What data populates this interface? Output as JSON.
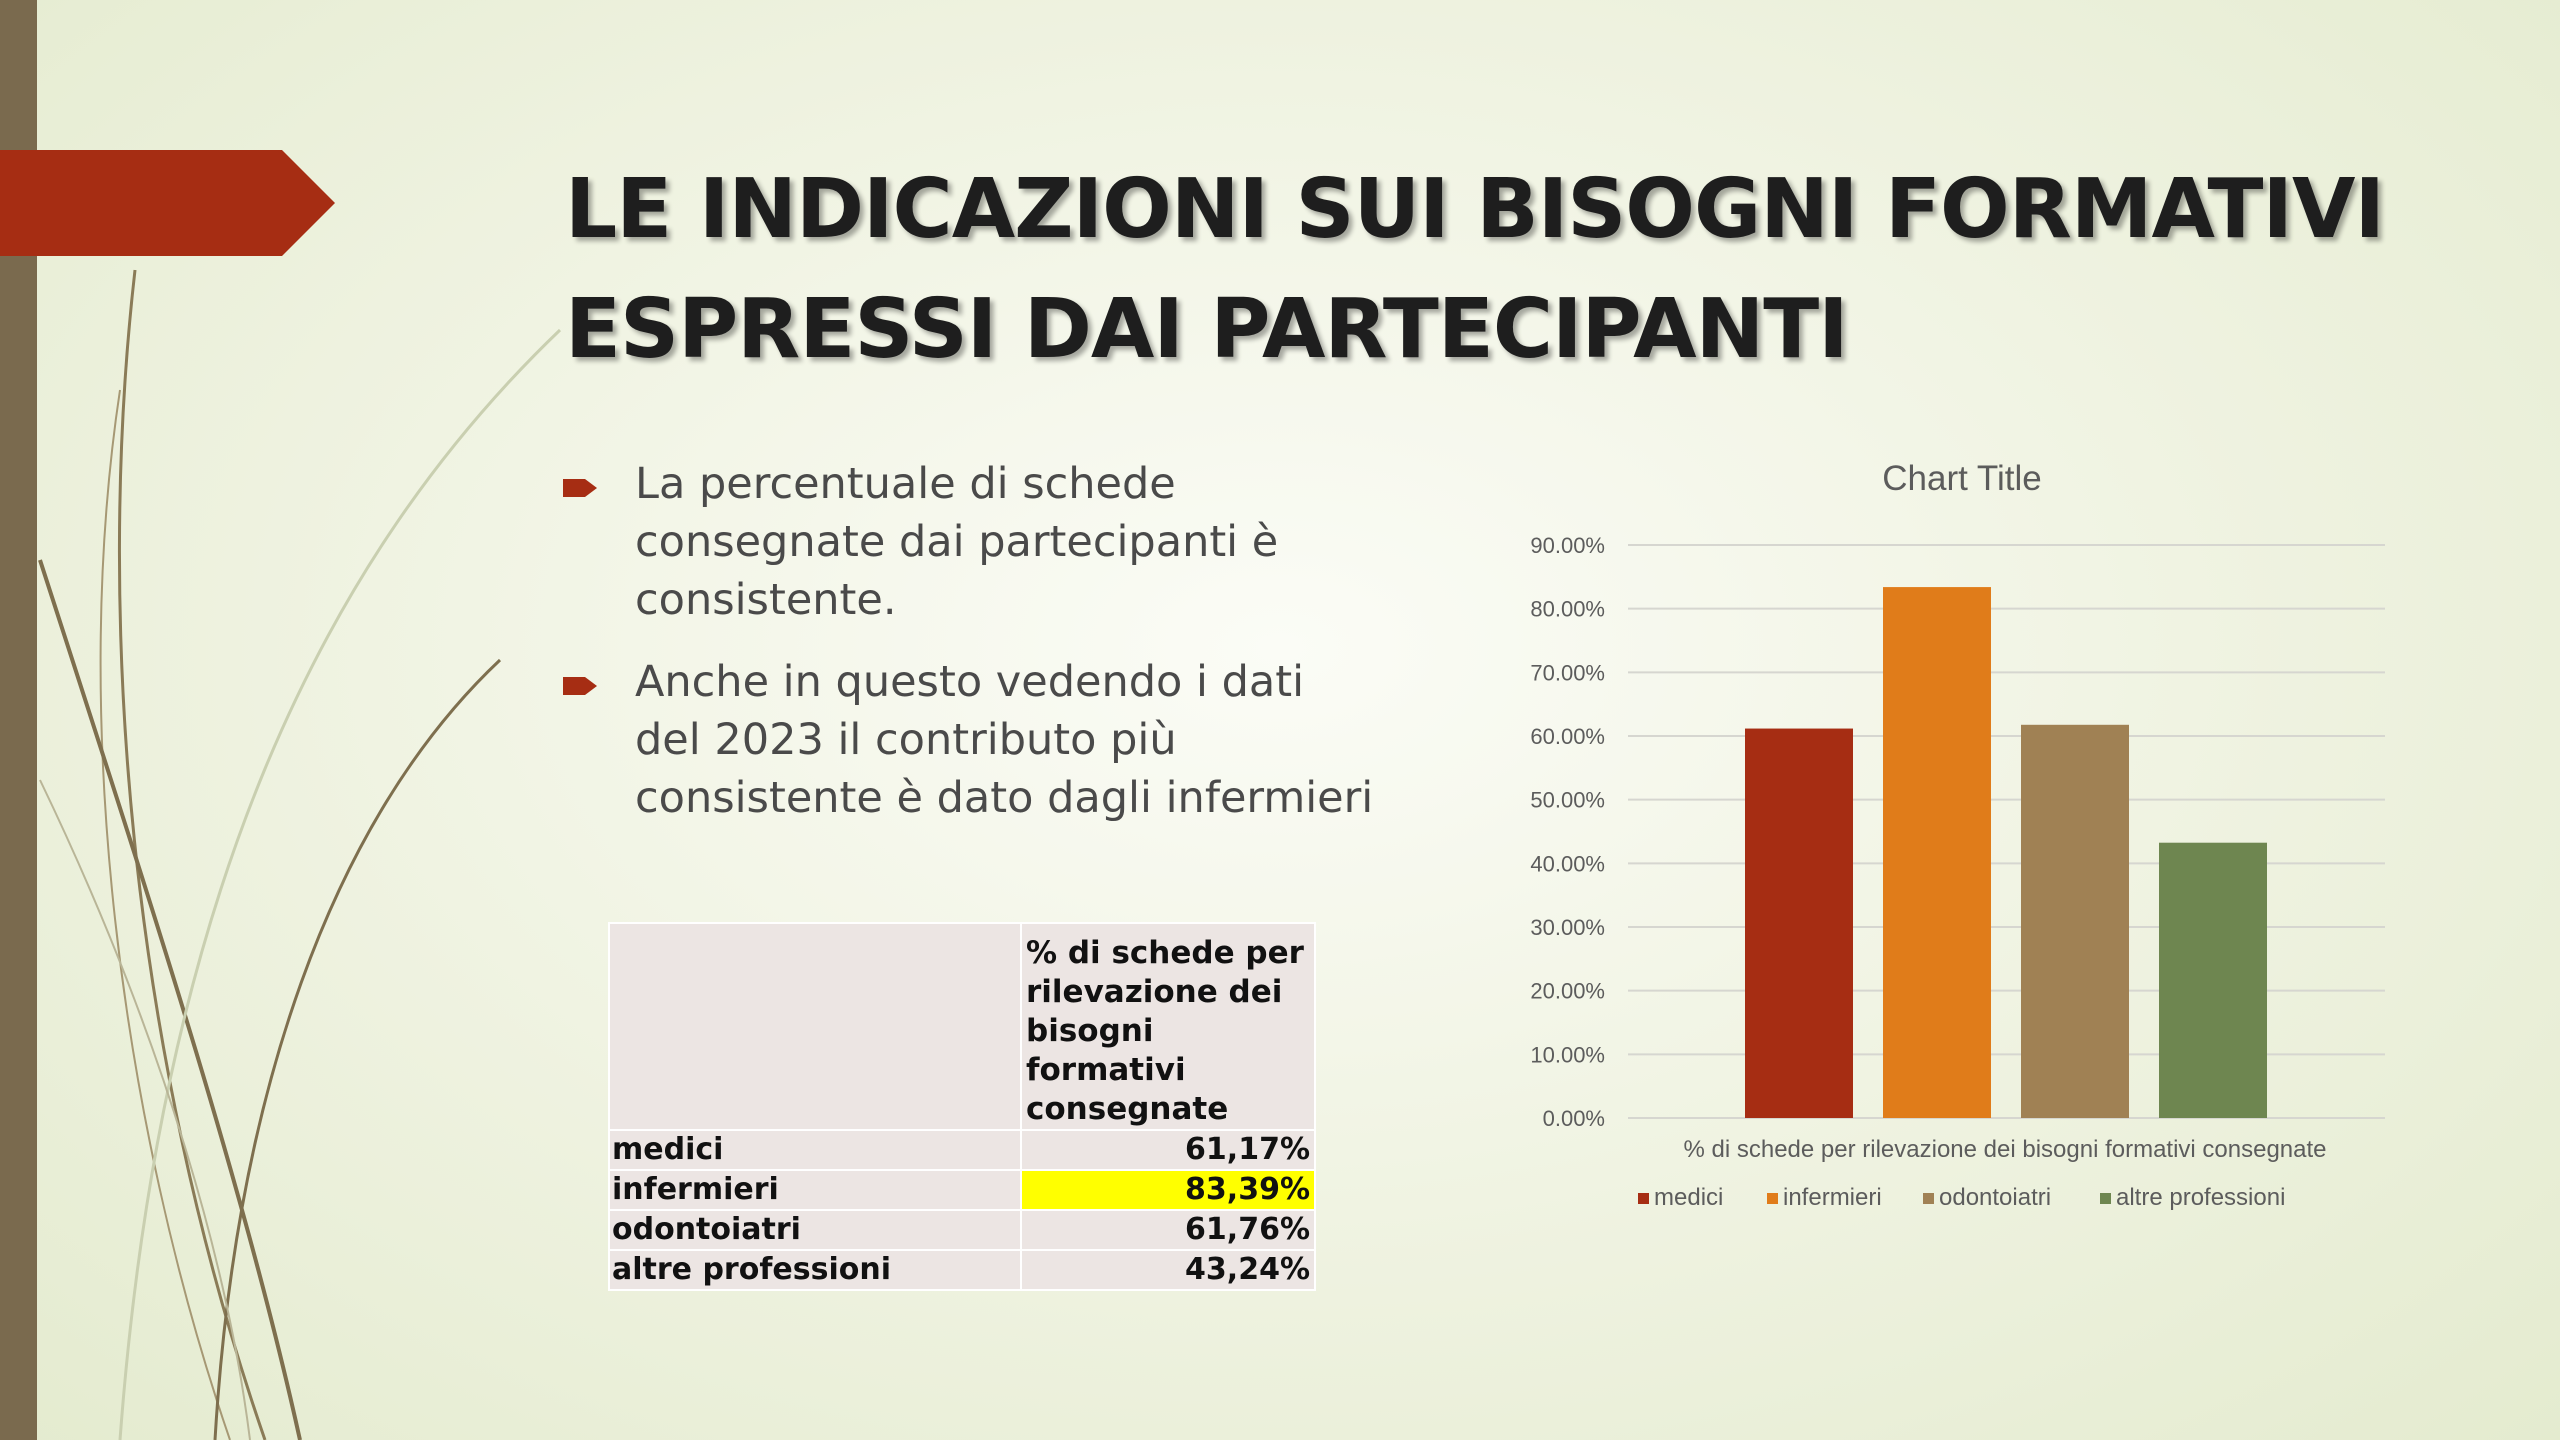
{
  "title_lines": [
    "LE INDICAZIONI SUI BISOGNI FORMATIVI",
    "ESPRESSI DAI PARTECIPANTI"
  ],
  "bullets": [
    [
      "La percentuale di schede",
      "consegnate dai partecipanti è",
      "consistente."
    ],
    [
      "Anche in questo vedendo i dati",
      "del 2023 il contributo più",
      "consistente è dato dagli infermieri"
    ]
  ],
  "table": {
    "header": [
      "% di schede per",
      "rilevazione dei",
      "bisogni formativi",
      "consegnate"
    ],
    "rows": [
      {
        "label": "medici",
        "value": "61,17%",
        "highlight": false
      },
      {
        "label": "infermieri",
        "value": "83,39%",
        "highlight": true
      },
      {
        "label": "odontoiatri",
        "value": "61,76%",
        "highlight": false
      },
      {
        "label": "altre professioni",
        "value": "43,24%",
        "highlight": false
      }
    ]
  },
  "colors": {
    "accent": "#a62d13",
    "left_bar": "#7a6a4e",
    "highlight": "#ffff00"
  },
  "chart_data": {
    "type": "bar",
    "title": "Chart Title",
    "categories": [
      "% di schede per rilevazione dei bisogni formativi consegnate"
    ],
    "series": [
      {
        "name": "medici",
        "values": [
          61.17
        ],
        "color": "#a62d13"
      },
      {
        "name": "infermieri",
        "values": [
          83.39
        ],
        "color": "#e07c1a"
      },
      {
        "name": "odontoiatri",
        "values": [
          61.76
        ],
        "color": "#a08154"
      },
      {
        "name": "altre professioni",
        "values": [
          43.24
        ],
        "color": "#6e8650"
      }
    ],
    "ylim": [
      0,
      90
    ],
    "yticks": [
      0,
      10,
      20,
      30,
      40,
      50,
      60,
      70,
      80,
      90
    ],
    "ytick_labels": [
      "0.00%",
      "10.00%",
      "20.00%",
      "30.00%",
      "40.00%",
      "50.00%",
      "60.00%",
      "70.00%",
      "80.00%",
      "90.00%"
    ],
    "grid": true,
    "legend": "bottom"
  }
}
